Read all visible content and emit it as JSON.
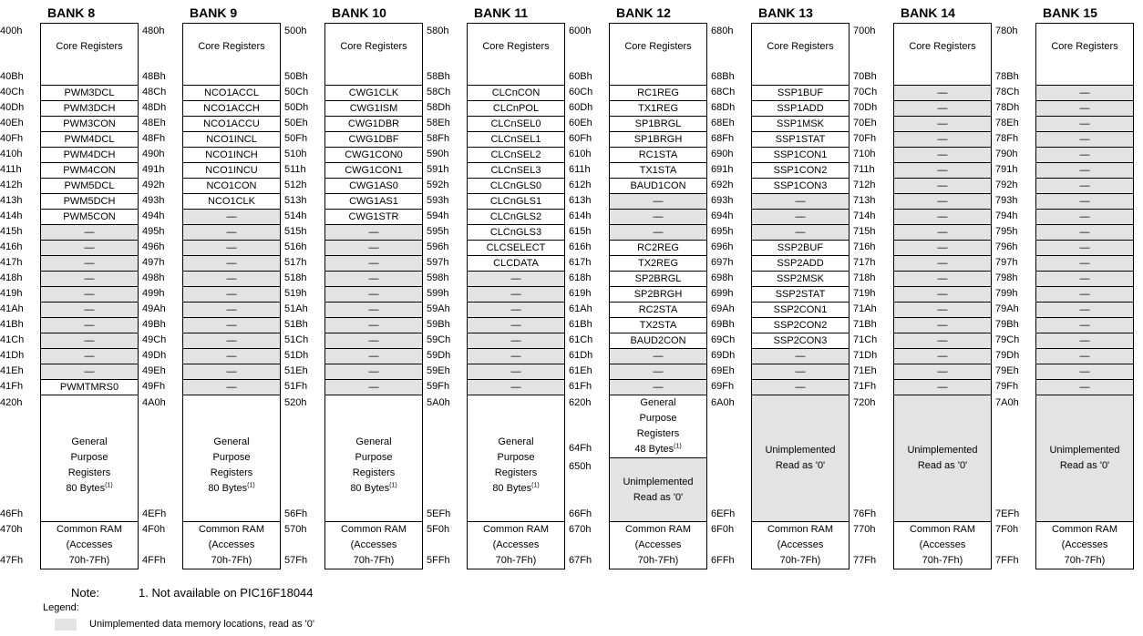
{
  "colors": {
    "unimplemented": "#e3e3e3",
    "border": "#000000"
  },
  "labels": {
    "core": "Core Registers",
    "gpr": [
      "General",
      "Purpose",
      "Registers"
    ],
    "common": [
      "Common RAM",
      "(Accesses",
      "70h-7Fh)"
    ],
    "unimpl": [
      "Unimplemented",
      "Read as '0'"
    ],
    "dash": "—",
    "footnote_mark": "(1)"
  },
  "banks": [
    {
      "title": "BANK 8",
      "core": [
        "400h",
        "40Bh"
      ],
      "rows": [
        [
          "40Ch",
          "PWM3DCL"
        ],
        [
          "40Dh",
          "PWM3DCH"
        ],
        [
          "40Eh",
          "PWM3CON"
        ],
        [
          "40Fh",
          "PWM4DCL"
        ],
        [
          "410h",
          "PWM4DCH"
        ],
        [
          "411h",
          "PWM4CON"
        ],
        [
          "412h",
          "PWM5DCL"
        ],
        [
          "413h",
          "PWM5DCH"
        ],
        [
          "414h",
          "PWM5CON"
        ],
        [
          "415h",
          "—"
        ],
        [
          "416h",
          "—"
        ],
        [
          "417h",
          "—"
        ],
        [
          "418h",
          "—"
        ],
        [
          "419h",
          "—"
        ],
        [
          "41Ah",
          "—"
        ],
        [
          "41Bh",
          "—"
        ],
        [
          "41Ch",
          "—"
        ],
        [
          "41Dh",
          "—"
        ],
        [
          "41Eh",
          "—"
        ],
        [
          "41Fh",
          "PWMTMRS0"
        ]
      ],
      "gpr": {
        "type": "gpr",
        "bytes": "80 Bytes",
        "start": "420h",
        "end": "46Fh"
      },
      "common": [
        "470h",
        "47Fh"
      ]
    },
    {
      "title": "BANK 9",
      "core": [
        "480h",
        "48Bh"
      ],
      "rows": [
        [
          "48Ch",
          "NCO1ACCL"
        ],
        [
          "48Dh",
          "NCO1ACCH"
        ],
        [
          "48Eh",
          "NCO1ACCU"
        ],
        [
          "48Fh",
          "NCO1INCL"
        ],
        [
          "490h",
          "NCO1INCH"
        ],
        [
          "491h",
          "NCO1INCU"
        ],
        [
          "492h",
          "NCO1CON"
        ],
        [
          "493h",
          "NCO1CLK"
        ],
        [
          "494h",
          "—"
        ],
        [
          "495h",
          "—"
        ],
        [
          "496h",
          "—"
        ],
        [
          "497h",
          "—"
        ],
        [
          "498h",
          "—"
        ],
        [
          "499h",
          "—"
        ],
        [
          "49Ah",
          "—"
        ],
        [
          "49Bh",
          "—"
        ],
        [
          "49Ch",
          "—"
        ],
        [
          "49Dh",
          "—"
        ],
        [
          "49Eh",
          "—"
        ],
        [
          "49Fh",
          "—"
        ]
      ],
      "gpr": {
        "type": "gpr",
        "bytes": "80 Bytes",
        "start": "4A0h",
        "end": "4EFh"
      },
      "common": [
        "4F0h",
        "4FFh"
      ]
    },
    {
      "title": "BANK 10",
      "core": [
        "500h",
        "50Bh"
      ],
      "rows": [
        [
          "50Ch",
          "CWG1CLK"
        ],
        [
          "50Dh",
          "CWG1ISM"
        ],
        [
          "50Eh",
          "CWG1DBR"
        ],
        [
          "50Fh",
          "CWG1DBF"
        ],
        [
          "510h",
          "CWG1CON0"
        ],
        [
          "511h",
          "CWG1CON1"
        ],
        [
          "512h",
          "CWG1AS0"
        ],
        [
          "513h",
          "CWG1AS1"
        ],
        [
          "514h",
          "CWG1STR"
        ],
        [
          "515h",
          "—"
        ],
        [
          "516h",
          "—"
        ],
        [
          "517h",
          "—"
        ],
        [
          "518h",
          "—"
        ],
        [
          "519h",
          "—"
        ],
        [
          "51Ah",
          "—"
        ],
        [
          "51Bh",
          "—"
        ],
        [
          "51Ch",
          "—"
        ],
        [
          "51Dh",
          "—"
        ],
        [
          "51Eh",
          "—"
        ],
        [
          "51Fh",
          "—"
        ]
      ],
      "gpr": {
        "type": "gpr",
        "bytes": "80 Bytes",
        "start": "520h",
        "end": "56Fh"
      },
      "common": [
        "570h",
        "57Fh"
      ]
    },
    {
      "title": "BANK 11",
      "core": [
        "580h",
        "58Bh"
      ],
      "rows": [
        [
          "58Ch",
          "CLCnCON"
        ],
        [
          "58Dh",
          "CLCnPOL"
        ],
        [
          "58Eh",
          "CLCnSEL0"
        ],
        [
          "58Fh",
          "CLCnSEL1"
        ],
        [
          "590h",
          "CLCnSEL2"
        ],
        [
          "591h",
          "CLCnSEL3"
        ],
        [
          "592h",
          "CLCnGLS0"
        ],
        [
          "593h",
          "CLCnGLS1"
        ],
        [
          "594h",
          "CLCnGLS2"
        ],
        [
          "595h",
          "CLCnGLS3"
        ],
        [
          "596h",
          "CLCSELECT"
        ],
        [
          "597h",
          "CLCDATA"
        ],
        [
          "598h",
          "—"
        ],
        [
          "599h",
          "—"
        ],
        [
          "59Ah",
          "—"
        ],
        [
          "59Bh",
          "—"
        ],
        [
          "59Ch",
          "—"
        ],
        [
          "59Dh",
          "—"
        ],
        [
          "59Eh",
          "—"
        ],
        [
          "59Fh",
          "—"
        ]
      ],
      "gpr": {
        "type": "gpr",
        "bytes": "80 Bytes",
        "start": "5A0h",
        "end": "5EFh"
      },
      "common": [
        "5F0h",
        "5FFh"
      ]
    },
    {
      "title": "BANK 12",
      "core": [
        "600h",
        "60Bh"
      ],
      "rows": [
        [
          "60Ch",
          "RC1REG"
        ],
        [
          "60Dh",
          "TX1REG"
        ],
        [
          "60Eh",
          "SP1BRGL"
        ],
        [
          "60Fh",
          "SP1BRGH"
        ],
        [
          "610h",
          "RC1STA"
        ],
        [
          "611h",
          "TX1STA"
        ],
        [
          "612h",
          "BAUD1CON"
        ],
        [
          "613h",
          "—"
        ],
        [
          "614h",
          "—"
        ],
        [
          "615h",
          "—"
        ],
        [
          "616h",
          "RC2REG"
        ],
        [
          "617h",
          "TX2REG"
        ],
        [
          "618h",
          "SP2BRGL"
        ],
        [
          "619h",
          "SP2BRGH"
        ],
        [
          "61Ah",
          "RC2STA"
        ],
        [
          "61Bh",
          "TX2STA"
        ],
        [
          "61Ch",
          "BAUD2CON"
        ],
        [
          "61Dh",
          "—"
        ],
        [
          "61Eh",
          "—"
        ],
        [
          "61Fh",
          "—"
        ]
      ],
      "gpr": {
        "type": "split",
        "bytes": "48 Bytes",
        "start": "620h",
        "end": "64Fh",
        "unimpl_start": "650h",
        "unimpl_end": "66Fh"
      },
      "common": [
        "670h",
        "67Fh"
      ]
    },
    {
      "title": "BANK 13",
      "core": [
        "680h",
        "68Bh"
      ],
      "rows": [
        [
          "68Ch",
          "SSP1BUF"
        ],
        [
          "68Dh",
          "SSP1ADD"
        ],
        [
          "68Eh",
          "SSP1MSK"
        ],
        [
          "68Fh",
          "SSP1STAT"
        ],
        [
          "690h",
          "SSP1CON1"
        ],
        [
          "691h",
          "SSP1CON2"
        ],
        [
          "692h",
          "SSP1CON3"
        ],
        [
          "693h",
          "—"
        ],
        [
          "694h",
          "—"
        ],
        [
          "695h",
          "—"
        ],
        [
          "696h",
          "SSP2BUF"
        ],
        [
          "697h",
          "SSP2ADD"
        ],
        [
          "698h",
          "SSP2MSK"
        ],
        [
          "699h",
          "SSP2STAT"
        ],
        [
          "69Ah",
          "SSP2CON1"
        ],
        [
          "69Bh",
          "SSP2CON2"
        ],
        [
          "69Ch",
          "SSP2CON3"
        ],
        [
          "69Dh",
          "—"
        ],
        [
          "69Eh",
          "—"
        ],
        [
          "69Fh",
          "—"
        ]
      ],
      "gpr": {
        "type": "unimpl",
        "start": "6A0h",
        "end": "6EFh"
      },
      "common": [
        "6F0h",
        "6FFh"
      ]
    },
    {
      "title": "BANK 14",
      "core": [
        "700h",
        "70Bh"
      ],
      "rows": [
        [
          "70Ch",
          "—"
        ],
        [
          "70Dh",
          "—"
        ],
        [
          "70Eh",
          "—"
        ],
        [
          "70Fh",
          "—"
        ],
        [
          "710h",
          "—"
        ],
        [
          "711h",
          "—"
        ],
        [
          "712h",
          "—"
        ],
        [
          "713h",
          "—"
        ],
        [
          "714h",
          "—"
        ],
        [
          "715h",
          "—"
        ],
        [
          "716h",
          "—"
        ],
        [
          "717h",
          "—"
        ],
        [
          "718h",
          "—"
        ],
        [
          "719h",
          "—"
        ],
        [
          "71Ah",
          "—"
        ],
        [
          "71Bh",
          "—"
        ],
        [
          "71Ch",
          "—"
        ],
        [
          "71Dh",
          "—"
        ],
        [
          "71Eh",
          "—"
        ],
        [
          "71Fh",
          "—"
        ]
      ],
      "gpr": {
        "type": "unimpl",
        "start": "720h",
        "end": "76Fh"
      },
      "common": [
        "770h",
        "77Fh"
      ]
    },
    {
      "title": "BANK 15",
      "core": [
        "780h",
        "78Bh"
      ],
      "rows": [
        [
          "78Ch",
          "—"
        ],
        [
          "78Dh",
          "—"
        ],
        [
          "78Eh",
          "—"
        ],
        [
          "78Fh",
          "—"
        ],
        [
          "790h",
          "—"
        ],
        [
          "791h",
          "—"
        ],
        [
          "792h",
          "—"
        ],
        [
          "793h",
          "—"
        ],
        [
          "794h",
          "—"
        ],
        [
          "795h",
          "—"
        ],
        [
          "796h",
          "—"
        ],
        [
          "797h",
          "—"
        ],
        [
          "798h",
          "—"
        ],
        [
          "799h",
          "—"
        ],
        [
          "79Ah",
          "—"
        ],
        [
          "79Bh",
          "—"
        ],
        [
          "79Ch",
          "—"
        ],
        [
          "79Dh",
          "—"
        ],
        [
          "79Eh",
          "—"
        ],
        [
          "79Fh",
          "—"
        ]
      ],
      "gpr": {
        "type": "unimpl",
        "start": "7A0h",
        "end": "7EFh"
      },
      "common": [
        "7F0h",
        "7FFh"
      ]
    }
  ],
  "footer": {
    "note_label": "Note:",
    "note_text": "1. Not available on PIC16F18044",
    "legend_label": "Legend:",
    "legend_text": "Unimplemented data memory locations, read as '0'"
  }
}
